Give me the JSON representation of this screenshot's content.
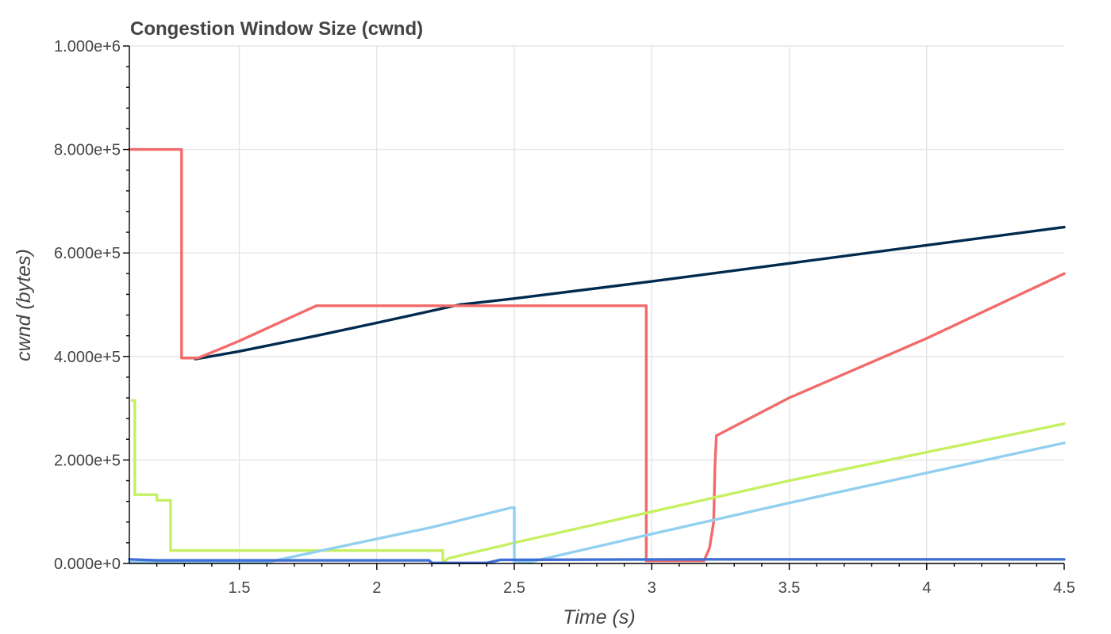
{
  "chart_data": {
    "type": "line",
    "title": "Congestion Window Size (cwnd)",
    "xlabel": "Time (s)",
    "ylabel": "cwnd (bytes)",
    "xlim": [
      1.1,
      4.5
    ],
    "ylim": [
      0,
      1000000
    ],
    "x_ticks": [
      1.5,
      2,
      2.5,
      3,
      3.5,
      4,
      4.5
    ],
    "x_tick_labels": [
      "1.5",
      "2",
      "2.5",
      "3",
      "3.5",
      "4",
      "4.5"
    ],
    "y_ticks": [
      0,
      200000,
      400000,
      600000,
      800000,
      1000000
    ],
    "y_tick_labels": [
      "0.000e+0",
      "2.000e+5",
      "4.000e+5",
      "6.000e+5",
      "8.000e+5",
      "1.000e+6"
    ],
    "grid": true,
    "legend": "none",
    "series": [
      {
        "color": "#002a4e",
        "points": [
          [
            1.34,
            395000
          ],
          [
            1.5,
            410000
          ],
          [
            1.78,
            440000
          ],
          [
            2.0,
            465000
          ],
          [
            2.3,
            500000
          ],
          [
            2.5,
            512000
          ],
          [
            3.0,
            545000
          ],
          [
            3.5,
            580000
          ],
          [
            4.0,
            615000
          ],
          [
            4.5,
            650000
          ]
        ]
      },
      {
        "color": "#f26b6b",
        "points": [
          [
            1.1,
            800000
          ],
          [
            1.29,
            800000
          ],
          [
            1.29,
            397000
          ],
          [
            1.35,
            397000
          ],
          [
            1.5,
            430000
          ],
          [
            1.78,
            498000
          ],
          [
            2.98,
            498000
          ],
          [
            2.98,
            5000
          ],
          [
            3.19,
            5000
          ],
          [
            3.21,
            30000
          ],
          [
            3.225,
            80000
          ],
          [
            3.23,
            190000
          ],
          [
            3.235,
            247000
          ],
          [
            3.5,
            320000
          ],
          [
            4.0,
            435000
          ],
          [
            4.5,
            560000
          ]
        ]
      },
      {
        "color": "#c6f062",
        "points": [
          [
            1.11,
            315000
          ],
          [
            1.12,
            315000
          ],
          [
            1.12,
            133000
          ],
          [
            1.2,
            133000
          ],
          [
            1.2,
            122000
          ],
          [
            1.25,
            122000
          ],
          [
            1.25,
            25000
          ],
          [
            2.24,
            25000
          ],
          [
            2.24,
            2000
          ],
          [
            2.26,
            10000
          ],
          [
            2.5,
            40000
          ],
          [
            3.0,
            100000
          ],
          [
            3.5,
            160000
          ],
          [
            4.0,
            215000
          ],
          [
            4.5,
            270000
          ]
        ]
      },
      {
        "color": "#93d0ef",
        "points": [
          [
            1.1,
            2000
          ],
          [
            1.6,
            2000
          ],
          [
            1.8,
            25000
          ],
          [
            2.2,
            70000
          ],
          [
            2.49,
            108000
          ],
          [
            2.5,
            108000
          ],
          [
            2.5,
            2000
          ],
          [
            2.55,
            2000
          ],
          [
            3.0,
            57000
          ],
          [
            3.5,
            117000
          ],
          [
            4.0,
            175000
          ],
          [
            4.5,
            233000
          ]
        ]
      },
      {
        "color": "#3f6fd6",
        "points": [
          [
            1.1,
            8000
          ],
          [
            1.2,
            6000
          ],
          [
            2.19,
            6000
          ],
          [
            2.2,
            1000
          ],
          [
            2.4,
            1000
          ],
          [
            2.45,
            7000
          ],
          [
            3.2,
            8000
          ],
          [
            4.5,
            8000
          ]
        ]
      }
    ]
  }
}
